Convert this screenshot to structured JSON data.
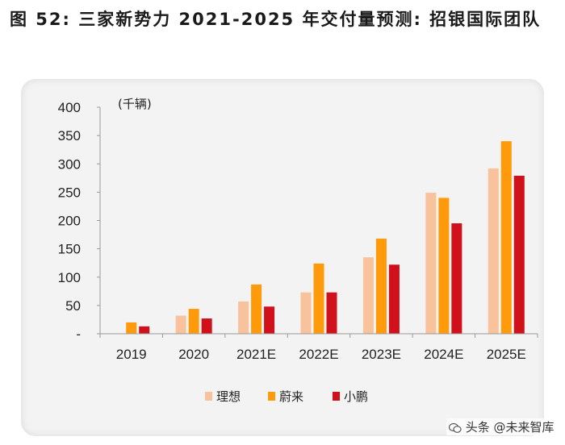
{
  "header": {
    "title": "图 52: 三家新势力 2021-2025 年交付量预测: 招银国际团队"
  },
  "watermark": {
    "text": "头条 @未来智库",
    "icon": "wechat-logo-icon"
  },
  "colors": {
    "lixiang": "#f8c39c",
    "nio": "#ff9a0a",
    "xpeng": "#d0101a",
    "axis": "#999999"
  },
  "chart_data": {
    "type": "bar",
    "unit_label": "(千辆)",
    "categories": [
      "2019",
      "2020",
      "2021E",
      "2022E",
      "2023E",
      "2024E",
      "2025E"
    ],
    "series": [
      {
        "name": "理想",
        "values": [
          null,
          32,
          57,
          73,
          135,
          249,
          292
        ]
      },
      {
        "name": "蔚来",
        "values": [
          20,
          44,
          87,
          124,
          168,
          240,
          340
        ]
      },
      {
        "name": "小鹏",
        "values": [
          13,
          27,
          48,
          73,
          122,
          195,
          279
        ]
      }
    ],
    "ylim": [
      0,
      400
    ],
    "yticks": [
      0,
      50,
      100,
      150,
      200,
      250,
      300,
      350,
      400
    ],
    "ytick_labels": [
      "-",
      "50",
      "100",
      "150",
      "200",
      "250",
      "300",
      "350",
      "400"
    ],
    "grid": false,
    "legend_position": "bottom-center"
  }
}
